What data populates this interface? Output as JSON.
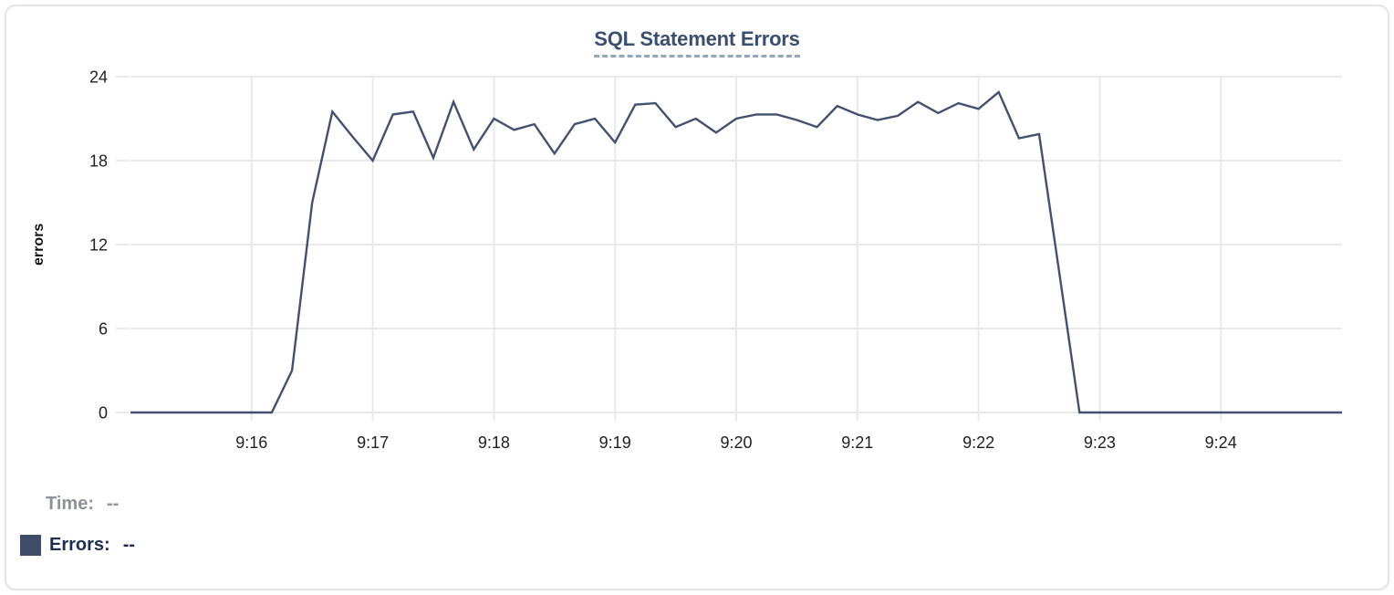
{
  "chart_data": {
    "type": "line",
    "title": "SQL Statement Errors",
    "xlabel": "",
    "ylabel": "errors",
    "ylim": [
      0,
      24
    ],
    "y_ticks": [
      0,
      6,
      12,
      18,
      24
    ],
    "x_ticks": [
      "9:16",
      "9:17",
      "9:18",
      "9:19",
      "9:20",
      "9:21",
      "9:22",
      "9:23",
      "9:24"
    ],
    "x_start": "9:15:00",
    "x_end": "9:25:00",
    "interval_seconds": 10,
    "grid": true,
    "legend_position": "below-left",
    "series": [
      {
        "name": "Errors",
        "color": "#43506f",
        "values": [
          0,
          0,
          0,
          0,
          0,
          0,
          0,
          0,
          3,
          15,
          21.5,
          19.7,
          18,
          21.3,
          21.5,
          18.2,
          22.2,
          18.8,
          21,
          20.2,
          20.6,
          18.5,
          20.6,
          21,
          19.3,
          22,
          22.1,
          20.4,
          21,
          20,
          21,
          21.3,
          21.3,
          20.9,
          20.4,
          21.9,
          21.3,
          20.9,
          21.2,
          22.2,
          21.4,
          22.1,
          21.7,
          22.9,
          19.6,
          19.9,
          10,
          0,
          0,
          0,
          0,
          0,
          0,
          0,
          0,
          0,
          0,
          0,
          0,
          0,
          0
        ]
      }
    ]
  },
  "tooltip": {
    "time_label": "Time:",
    "time_value": "--",
    "errors_label": "Errors:",
    "errors_value": "--"
  },
  "colors": {
    "line": "#43506f",
    "legend_swatch": "#3e4c68",
    "title": "#3a4e6e",
    "title_underline": "#97a5bd",
    "grid": "#e9e9e9",
    "axis_text": "#1d1f23",
    "tooltip_time_text": "#8e9297",
    "tooltip_errors_text": "#1d2e52"
  }
}
